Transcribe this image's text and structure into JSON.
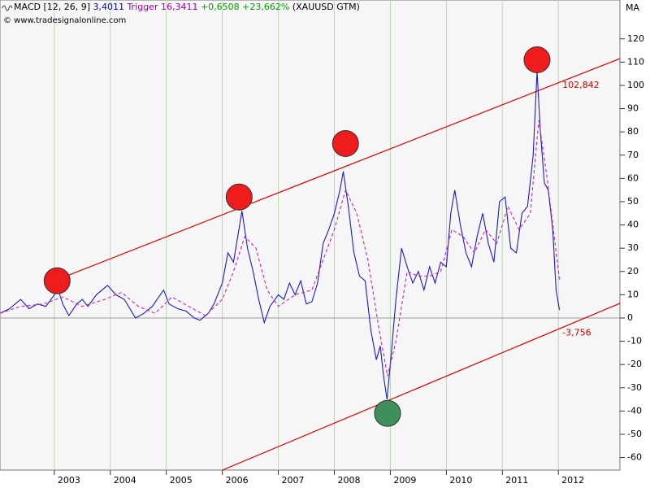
{
  "chart_data": {
    "type": "line",
    "header": {
      "indicator": "MACD [12, 26, 9]",
      "indicator_color": "#000000",
      "last": "3,4011",
      "last_color": "#0000dd",
      "trigger": "Trigger 16,3411",
      "trigger_color": "#9900aa",
      "change": "+0,6508 +23,662%",
      "change_color": "#00a000",
      "symbol": "(XAUUSD GTM)",
      "symbol_color": "#000000"
    },
    "copyright": "© www.tradesignalonline.com",
    "axis_title": "MA",
    "xlim": [
      2002.03,
      2013.1
    ],
    "xticks": [
      2003,
      2004,
      2005,
      2006,
      2007,
      2008,
      2009,
      2010,
      2011,
      2012
    ],
    "ylim": [
      -65.4,
      136.7
    ],
    "yticks": [
      -60,
      -50,
      -40,
      -30,
      -20,
      -10,
      0,
      10,
      20,
      30,
      40,
      50,
      60,
      70,
      80,
      90,
      100,
      110,
      120
    ],
    "xgrid": true,
    "zero_line": true,
    "series": [
      {
        "name": "MACD",
        "color": "#1a1acc",
        "dashed": false,
        "x": [
          2002.03,
          2002.2,
          2002.4,
          2002.55,
          2002.7,
          2002.85,
          2003.0,
          2003.07,
          2003.15,
          2003.26,
          2003.4,
          2003.5,
          2003.6,
          2003.75,
          2003.95,
          2004.1,
          2004.25,
          2004.45,
          2004.6,
          2004.75,
          2004.95,
          2005.05,
          2005.2,
          2005.35,
          2005.5,
          2005.6,
          2005.75,
          2005.85,
          2006.0,
          2006.1,
          2006.2,
          2006.35,
          2006.45,
          2006.55,
          2006.65,
          2006.75,
          2006.85,
          2007.0,
          2007.1,
          2007.2,
          2007.3,
          2007.4,
          2007.5,
          2007.6,
          2007.7,
          2007.8,
          2007.9,
          2008.0,
          2008.1,
          2008.16,
          2008.25,
          2008.35,
          2008.45,
          2008.55,
          2008.65,
          2008.75,
          2008.82,
          2008.88,
          2008.94,
          2009.0,
          2009.1,
          2009.2,
          2009.3,
          2009.4,
          2009.5,
          2009.6,
          2009.7,
          2009.8,
          2009.9,
          2010.0,
          2010.08,
          2010.15,
          2010.25,
          2010.35,
          2010.45,
          2010.55,
          2010.65,
          2010.75,
          2010.85,
          2010.95,
          2011.05,
          2011.15,
          2011.25,
          2011.35,
          2011.45,
          2011.55,
          2011.62,
          2011.68,
          2011.75,
          2011.82,
          2011.9,
          2011.96,
          2012.02
        ],
        "values": [
          2,
          4,
          8,
          4,
          6,
          5,
          10,
          12,
          6,
          1,
          6,
          8,
          5,
          10,
          14,
          10,
          8,
          0,
          2,
          5,
          12,
          6,
          4,
          3,
          0,
          -1,
          2,
          6,
          15,
          28,
          24,
          46,
          30,
          20,
          8,
          -2,
          5,
          10,
          8,
          15,
          10,
          16,
          6,
          7,
          15,
          32,
          38,
          45,
          55,
          63,
          48,
          28,
          18,
          16,
          -5,
          -18,
          -12,
          -25,
          -35,
          -20,
          8,
          30,
          22,
          15,
          20,
          12,
          22,
          15,
          24,
          22,
          45,
          55,
          40,
          28,
          22,
          35,
          45,
          32,
          24,
          50,
          52,
          30,
          28,
          45,
          48,
          70,
          106,
          80,
          58,
          55,
          38,
          12,
          3.4
        ]
      },
      {
        "name": "Trigger",
        "color": "#cc22aa",
        "dashed": true,
        "x": [
          2002.03,
          2002.4,
          2002.8,
          2003.15,
          2003.5,
          2003.9,
          2004.2,
          2004.5,
          2004.8,
          2005.1,
          2005.4,
          2005.7,
          2006.0,
          2006.2,
          2006.4,
          2006.6,
          2006.8,
          2007.0,
          2007.3,
          2007.6,
          2007.8,
          2008.0,
          2008.2,
          2008.4,
          2008.6,
          2008.8,
          2008.95,
          2009.1,
          2009.3,
          2009.5,
          2009.7,
          2009.9,
          2010.1,
          2010.3,
          2010.5,
          2010.7,
          2010.9,
          2011.1,
          2011.3,
          2011.5,
          2011.65,
          2011.8,
          2012.02
        ],
        "values": [
          2,
          5,
          6,
          9,
          5,
          8,
          11,
          5,
          2,
          9,
          5,
          1,
          8,
          20,
          35,
          30,
          12,
          5,
          10,
          12,
          25,
          38,
          55,
          45,
          25,
          -5,
          -25,
          -10,
          20,
          18,
          18,
          20,
          38,
          35,
          28,
          38,
          32,
          48,
          38,
          45,
          85,
          60,
          16.3
        ]
      }
    ],
    "trendlines": [
      {
        "color": "#e00000",
        "x": [
          2003.0,
          2013.1
        ],
        "y": [
          16,
          111.5
        ]
      },
      {
        "color": "#e00000",
        "x": [
          2006.0,
          2013.1
        ],
        "y": [
          -65.4,
          6.3
        ]
      }
    ],
    "annotations": [
      {
        "x": 2012.0,
        "y": 102.842,
        "label": "102,842",
        "color": "#cc0000"
      },
      {
        "x": 2012.0,
        "y": -3.756,
        "label": "-3,756",
        "color": "#cc0000"
      }
    ],
    "highlights": [
      {
        "x": 2003.05,
        "y": 16,
        "color": "#ee1c1c"
      },
      {
        "x": 2006.3,
        "y": 52,
        "color": "#ee1c1c"
      },
      {
        "x": 2008.2,
        "y": 75,
        "color": "#ee1c1c"
      },
      {
        "x": 2011.62,
        "y": 111,
        "color": "#ee1c1c"
      },
      {
        "x": 2008.95,
        "y": -41,
        "color": "#3f8f5a"
      }
    ]
  }
}
